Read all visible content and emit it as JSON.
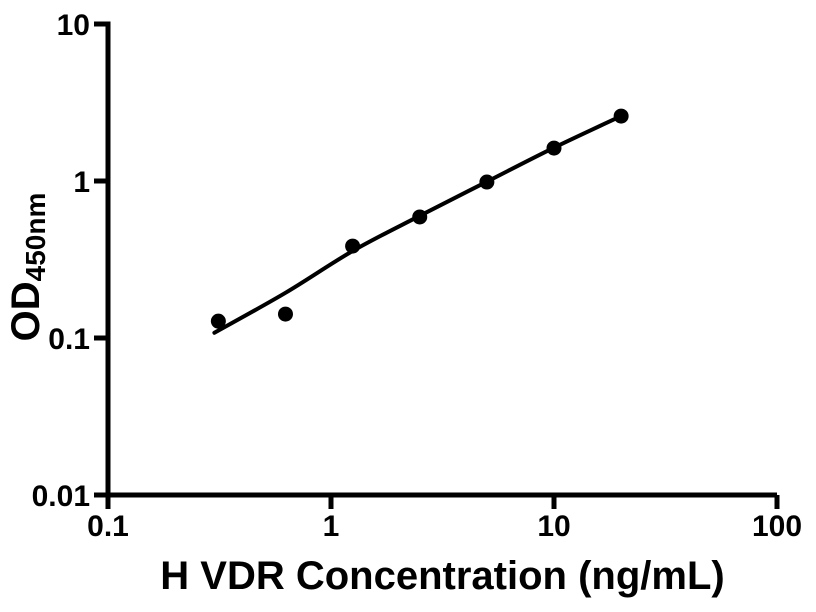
{
  "chart_data": {
    "type": "scatter",
    "title": "",
    "xlabel": "H VDR Concentration (ng/mL)",
    "ylabel": "OD",
    "ylabel_subscript": "450nm",
    "x_scale": "log",
    "y_scale": "log",
    "xlim": [
      0.1,
      100
    ],
    "ylim": [
      0.01,
      10
    ],
    "grid": false,
    "legend": "none",
    "x_ticks": [
      {
        "value": 0.1,
        "label": "0.1"
      },
      {
        "value": 1,
        "label": "1"
      },
      {
        "value": 10,
        "label": "10"
      },
      {
        "value": 100,
        "label": "100"
      }
    ],
    "y_ticks": [
      {
        "value": 0.01,
        "label": "0.01"
      },
      {
        "value": 0.1,
        "label": "0.1"
      },
      {
        "value": 1,
        "label": "1"
      },
      {
        "value": 10,
        "label": "10"
      }
    ],
    "series": [
      {
        "name": "standard-points",
        "marker": "filled-circle",
        "color": "#000000",
        "points": [
          {
            "x": 0.3125,
            "y": 0.128
          },
          {
            "x": 0.625,
            "y": 0.142
          },
          {
            "x": 1.25,
            "y": 0.385
          },
          {
            "x": 2.5,
            "y": 0.59
          },
          {
            "x": 5,
            "y": 0.985
          },
          {
            "x": 10,
            "y": 1.62
          },
          {
            "x": 20,
            "y": 2.59
          }
        ]
      }
    ],
    "fit_curve": {
      "name": "fitted-standard-curve",
      "color": "#000000",
      "points": [
        [
          0.3,
          0.108
        ],
        [
          0.625,
          0.194
        ],
        [
          1.25,
          0.358
        ],
        [
          2.5,
          0.6
        ],
        [
          5,
          0.99
        ],
        [
          10,
          1.63
        ],
        [
          20,
          2.59
        ]
      ]
    }
  },
  "colors": {
    "foreground": "#000000",
    "background": "#ffffff"
  }
}
